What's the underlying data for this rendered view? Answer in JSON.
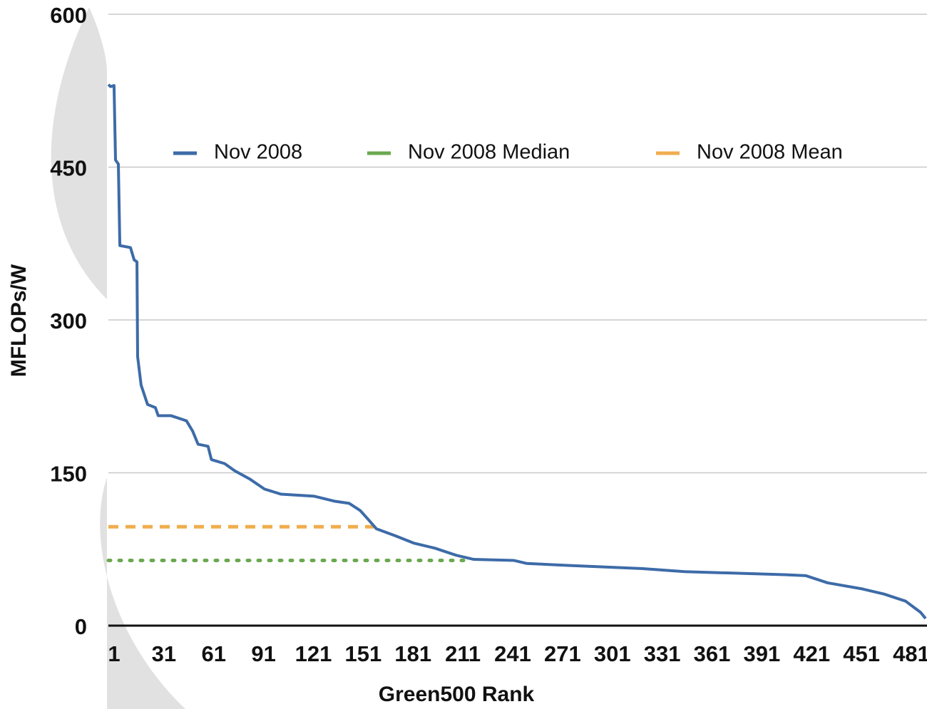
{
  "chart_data": {
    "type": "line",
    "xlabel": "Green500 Rank",
    "ylabel": "MFLOPs/W",
    "xlim": [
      1,
      493
    ],
    "ylim": [
      0,
      600
    ],
    "xticks": [
      1,
      31,
      61,
      91,
      121,
      151,
      181,
      211,
      241,
      271,
      301,
      331,
      361,
      391,
      421,
      451,
      481
    ],
    "yticks": [
      0,
      150,
      300,
      450,
      600
    ],
    "grid": true,
    "legend": "top",
    "series": [
      {
        "name": "Nov 2008",
        "color": "#3d6ba8",
        "style": "solid",
        "x": [
          1,
          2.3,
          4.4,
          5.3,
          7,
          7.9,
          14.3,
          16.5,
          18.2,
          18.6,
          20.7,
          24.6,
          29.3,
          31,
          38.8,
          48,
          51.7,
          55,
          61,
          63,
          71,
          77,
          86,
          95,
          105,
          125,
          137.5,
          146,
          152.6,
          157,
          162.4,
          174,
          184.8,
          197.6,
          210.5,
          221,
          245,
          253,
          279,
          322,
          348,
          408,
          421,
          434,
          455,
          468,
          481,
          490,
          493
        ],
        "values": [
          531,
          529,
          530,
          457,
          453,
          373,
          371,
          359,
          357,
          264,
          236,
          217,
          214,
          206,
          206,
          201,
          191,
          178,
          176,
          163,
          159,
          152,
          144,
          134,
          129,
          127,
          122,
          120,
          113,
          105,
          95,
          88,
          81,
          76,
          69,
          65,
          64,
          61,
          59,
          56,
          53,
          50,
          49,
          42,
          36,
          31,
          24,
          13,
          7
        ]
      },
      {
        "name": "Nov 2008 Median",
        "color": "#6aa84f",
        "style": "dotted",
        "x": [
          1,
          219
        ],
        "values": [
          64,
          64
        ]
      },
      {
        "name": "Nov 2008 Mean",
        "color": "#f0ad4e",
        "style": "dashed",
        "x": [
          1,
          161
        ],
        "values": [
          97,
          97
        ]
      }
    ]
  }
}
